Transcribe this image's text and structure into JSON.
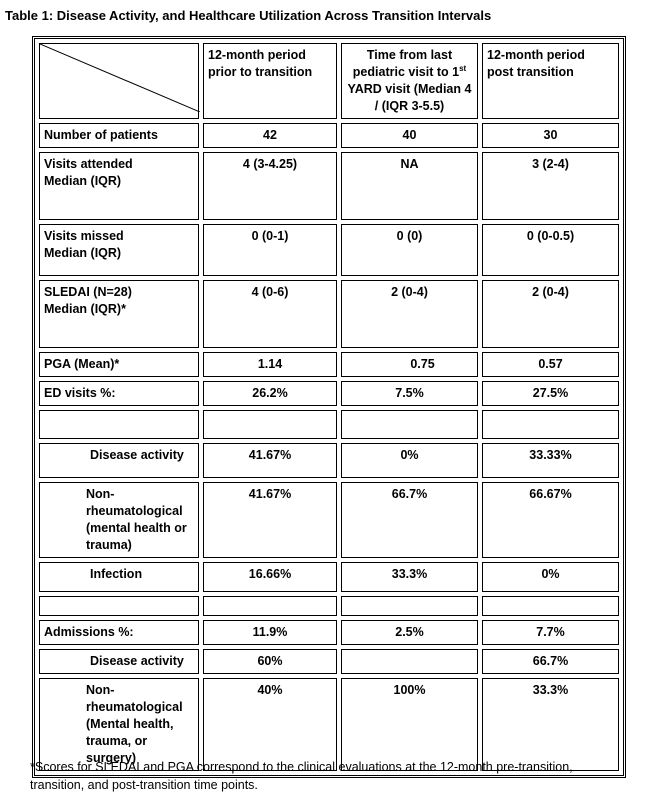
{
  "title": "Table 1: Disease Activity, and Healthcare Utilization Across Transition Intervals",
  "table": {
    "header": [
      "12-month period prior to transition",
      [
        "Time from last pediatric visit to 1",
        "st",
        "YARD visit (Median 4 / (IQR 3-5.5)"
      ],
      "12-month period post transition"
    ],
    "rows": [
      [
        "Number of patients",
        "42",
        "40",
        "30"
      ],
      [
        "Visits attended\nMedian (IQR)",
        "4 (3-4.25)",
        "NA",
        "3 (2-4)"
      ],
      [
        "Visits missed\nMedian (IQR)",
        "0 (0-1)",
        "0 (0)",
        "0 (0-0.5)"
      ],
      [
        "SLEDAI (N=28)\nMedian (IQR)*",
        "4 (0-6)",
        "2 (0-4)",
        "2 (0-4)"
      ],
      [
        "PGA (Mean)*",
        "1.14",
        "0.75",
        "0.57"
      ],
      [
        "ED visits %:",
        "26.2%",
        "7.5%",
        "27.5%"
      ],
      [
        "Disease activity",
        "41.67%",
        "0%",
        "33.33%"
      ],
      [
        "Non-rheumatological (mental health or trauma)",
        "41.67%",
        "66.7%",
        "66.67%"
      ],
      [
        "Infection",
        "16.66%",
        "33.3%",
        "0%"
      ],
      [
        "Admissions %:",
        "11.9%",
        "2.5%",
        "7.7%"
      ],
      [
        "Disease activity",
        "60%",
        null,
        "66.7%"
      ],
      [
        "Non-rheumatological (Mental health, trauma, or surgery)",
        "40%",
        "100%",
        "33.3%"
      ]
    ]
  },
  "footnote": "*Scores for SLEDAI and PGA correspond to the  clinical evaluations at the 12-month pre-transition, transition, and post-transition time points."
}
